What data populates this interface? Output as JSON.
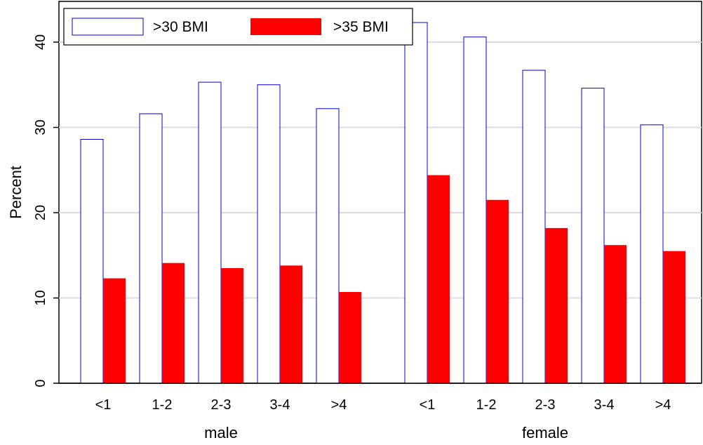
{
  "chart_data": {
    "type": "bar",
    "ylabel": "Percent",
    "ylim": [
      0,
      43
    ],
    "yticks": [
      0,
      10,
      20,
      30,
      40
    ],
    "grid": true,
    "legend_position": "top-left",
    "groups": [
      {
        "label": "male",
        "categories": [
          "<1",
          "1-2",
          "2-3",
          "3-4",
          ">4"
        ]
      },
      {
        "label": "female",
        "categories": [
          "<1",
          "1-2",
          "2-3",
          "3-4",
          ">4"
        ]
      }
    ],
    "series": [
      {
        "name": ">30 BMI",
        "color": "#0000cc",
        "fill": "none",
        "values": [
          28.6,
          31.6,
          35.3,
          35.0,
          32.2,
          42.3,
          40.6,
          36.7,
          34.6,
          30.3
        ]
      },
      {
        "name": ">35 BMI",
        "color": "#ff0000",
        "fill": "#ff0000",
        "values": [
          12.3,
          14.1,
          13.5,
          13.8,
          10.7,
          24.4,
          21.5,
          18.2,
          16.2,
          15.5
        ]
      }
    ]
  }
}
